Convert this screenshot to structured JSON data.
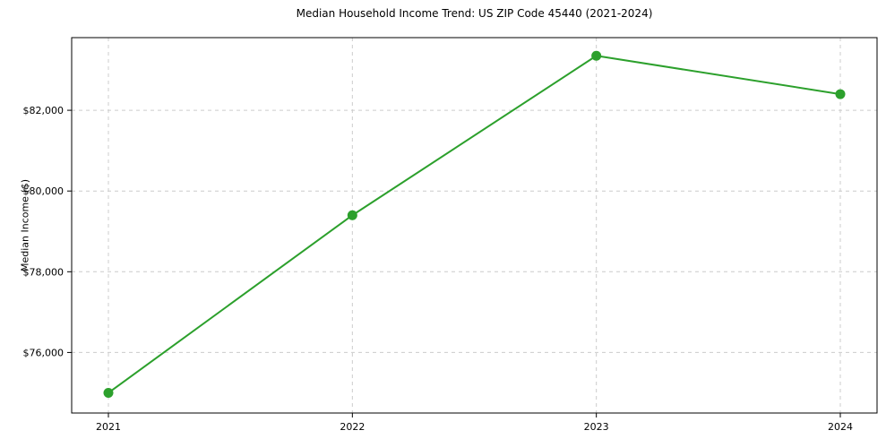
{
  "chart_data": {
    "type": "line",
    "title": "Median Household Income Trend: US ZIP Code 45440 (2021-2024)",
    "xlabel": "",
    "ylabel": "Median Income ($)",
    "x": [
      2021,
      2022,
      2023,
      2024
    ],
    "x_tick_labels": [
      "2021",
      "2022",
      "2023",
      "2024"
    ],
    "series": [
      {
        "name": "Median Household Income",
        "values": [
          75000,
          79400,
          83350,
          82400
        ]
      }
    ],
    "y_ticks": [
      76000,
      78000,
      80000,
      82000
    ],
    "y_tick_labels": [
      "$76,000",
      "$78,000",
      "$80,000",
      "$82,000"
    ],
    "ylim": [
      74500,
      83800
    ],
    "line_color": "#2ca02c",
    "grid": "dashed",
    "legend": "none",
    "marker": "circle"
  }
}
